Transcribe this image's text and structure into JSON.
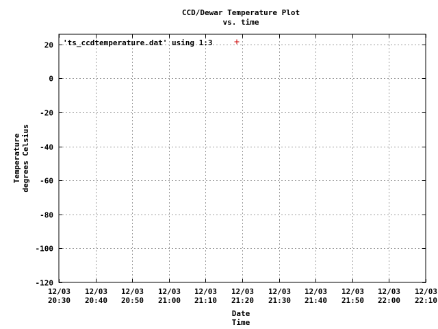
{
  "chart_data": {
    "type": "scatter",
    "title": "CCD/Dewar Temperature Plot",
    "subtitle": "vs. time",
    "ylabel": [
      "Temperature",
      "degrees Celsius"
    ],
    "xlabel": [
      "Date",
      "Time"
    ],
    "ylim": [
      -120,
      26
    ],
    "yticks": [
      20,
      0,
      -20,
      -40,
      -60,
      -80,
      -100,
      -120
    ],
    "ytick_labels": [
      "20",
      "0",
      "-20",
      "-40",
      "-60",
      "-80",
      "-100",
      "-120"
    ],
    "xticks": [
      {
        "date": "12/03",
        "time": "20:30"
      },
      {
        "date": "12/03",
        "time": "20:40"
      },
      {
        "date": "12/03",
        "time": "20:50"
      },
      {
        "date": "12/03",
        "time": "21:00"
      },
      {
        "date": "12/03",
        "time": "21:10"
      },
      {
        "date": "12/03",
        "time": "21:20"
      },
      {
        "date": "12/03",
        "time": "21:30"
      },
      {
        "date": "12/03",
        "time": "21:40"
      },
      {
        "date": "12/03",
        "time": "21:50"
      },
      {
        "date": "12/03",
        "time": "22:00"
      },
      {
        "date": "12/03",
        "time": "22:10"
      }
    ],
    "grid": true,
    "legend_position": "top-left",
    "series": [
      {
        "name": "'ts_ccdtemperature.dat' using 1:3",
        "marker": "plus",
        "color": "#cc0000",
        "points": []
      }
    ]
  }
}
